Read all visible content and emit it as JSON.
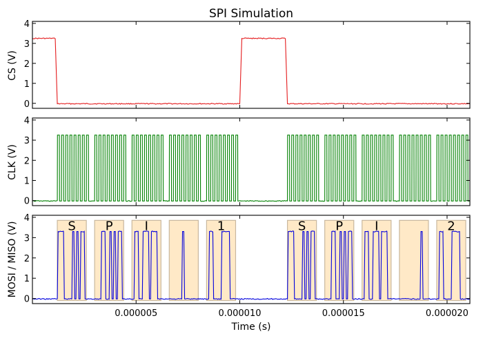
{
  "chart_data": [
    {
      "type": "line",
      "title": "SPI Simulation",
      "ylabel": "CS (V)",
      "xlabel": "",
      "ylim": [
        -0.25,
        4.1
      ],
      "yticks": [
        0,
        1,
        2,
        3,
        4
      ],
      "xlim": [
        0.0,
        2.11e-05
      ],
      "grid": false,
      "series": [
        {
          "color": "#e41a1c",
          "x": [
            0.0,
            1.1e-06,
            1.2e-06,
            1e-05,
            1.01e-05,
            1.22e-05,
            1.23e-05,
            2.11e-05
          ],
          "values": [
            3.25,
            3.25,
            -0.02,
            -0.02,
            3.25,
            3.25,
            -0.02,
            -0.02
          ]
        }
      ]
    },
    {
      "type": "line",
      "ylabel": "CLK (V)",
      "xlabel": "",
      "ylim": [
        -0.25,
        4.1
      ],
      "yticks": [
        0,
        1,
        2,
        3,
        4
      ],
      "xlim": [
        0.0,
        2.11e-05
      ],
      "grid": false,
      "high": 3.25,
      "low": -0.02,
      "burst_starts": [
        1.2e-06,
        3e-06,
        4.8e-06,
        6.6e-06,
        8.4e-06,
        1.23e-05,
        1.41e-05,
        1.59e-05,
        1.77e-05,
        1.95e-05
      ],
      "burst_pulses": 8,
      "pulse_period": 2e-07,
      "series": [
        {
          "color": "#008000"
        }
      ]
    },
    {
      "type": "line",
      "ylabel": "MOSI / MISO (V)",
      "xlabel": "Time (s)",
      "ylim": [
        -0.25,
        4.1
      ],
      "yticks": [
        0,
        1,
        2,
        3,
        4
      ],
      "xlim": [
        0.0,
        2.11e-05
      ],
      "xticks": [
        5e-06,
        1e-05,
        1.5e-05,
        2e-05
      ],
      "xtick_labels": [
        "0.000005",
        "0.000010",
        "0.000015",
        "0.000020"
      ],
      "grid": false,
      "high": 3.3,
      "low": -0.02,
      "highlight_color": "#ffe9c7",
      "highlight_edge": "#c8b79e",
      "bytes": [
        {
          "label": "S",
          "x0": 1.2e-06,
          "x1": 2.6e-06,
          "pulses": [
            [
              1.2e-06,
              1.5e-06
            ],
            [
              1.9e-06,
              2e-06
            ],
            [
              2.1e-06,
              2.2e-06
            ],
            [
              2.3e-06,
              2.5e-06
            ]
          ]
        },
        {
          "label": "P",
          "x0": 3e-06,
          "x1": 4.4e-06,
          "pulses": [
            [
              3.3e-06,
              3.5e-06
            ],
            [
              3.7e-06,
              3.8e-06
            ],
            [
              3.9e-06,
              4e-06
            ],
            [
              4.1e-06,
              4.3e-06
            ]
          ]
        },
        {
          "label": "I",
          "x0": 4.8e-06,
          "x1": 6.2e-06,
          "pulses": [
            [
              4.9e-06,
              5.1e-06
            ],
            [
              5.3e-06,
              5.6e-06
            ],
            [
              5.7e-06,
              6e-06
            ]
          ]
        },
        {
          "label": "",
          "x0": 6.6e-06,
          "x1": 8e-06,
          "pulses": [
            [
              7.2e-06,
              7.3e-06
            ]
          ]
        },
        {
          "label": "1",
          "x0": 8.4e-06,
          "x1": 9.8e-06,
          "pulses": [
            [
              8.5e-06,
              8.7e-06
            ],
            [
              9.1e-06,
              9.5e-06
            ]
          ]
        },
        {
          "label": "S",
          "x0": 1.23e-05,
          "x1": 1.37e-05,
          "pulses": [
            [
              1.23e-05,
              1.26e-05
            ],
            [
              1.3e-05,
              1.31e-05
            ],
            [
              1.32e-05,
              1.33e-05
            ],
            [
              1.34e-05,
              1.36e-05
            ]
          ]
        },
        {
          "label": "P",
          "x0": 1.41e-05,
          "x1": 1.55e-05,
          "pulses": [
            [
              1.44e-05,
              1.46e-05
            ],
            [
              1.48e-05,
              1.49e-05
            ],
            [
              1.5e-05,
              1.51e-05
            ],
            [
              1.52e-05,
              1.54e-05
            ]
          ]
        },
        {
          "label": "I",
          "x0": 1.59e-05,
          "x1": 1.73e-05,
          "pulses": [
            [
              1.6e-05,
              1.62e-05
            ],
            [
              1.64e-05,
              1.67e-05
            ],
            [
              1.68e-05,
              1.71e-05
            ]
          ]
        },
        {
          "label": "",
          "x0": 1.77e-05,
          "x1": 1.91e-05,
          "pulses": [
            [
              1.87e-05,
              1.88e-05
            ]
          ]
        },
        {
          "label": "2",
          "x0": 1.95e-05,
          "x1": 2.09e-05,
          "pulses": [
            [
              1.96e-05,
              1.98e-05
            ],
            [
              2.02e-05,
              2.06e-05
            ]
          ]
        }
      ],
      "series": [
        {
          "color": "#0000dd"
        }
      ]
    }
  ]
}
